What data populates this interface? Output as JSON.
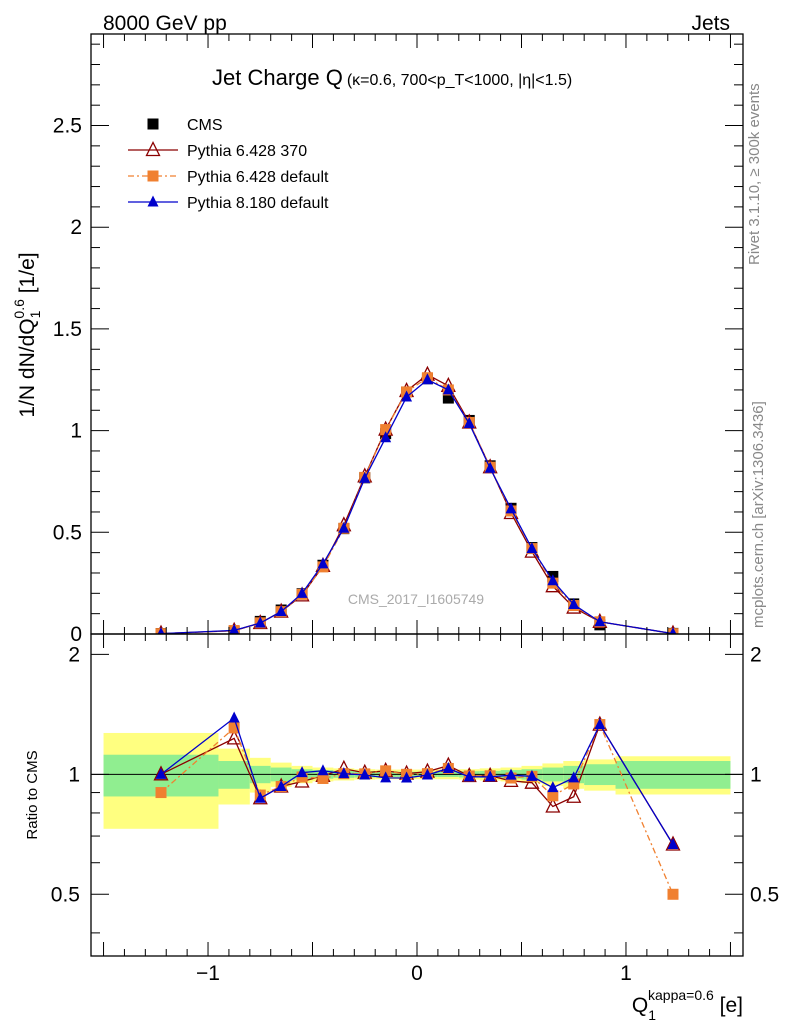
{
  "header": {
    "left": "8000 GeV pp",
    "right": "Jets"
  },
  "side_labels": {
    "rivet": "Rivet 3.1.10, ≥ 300k events",
    "mcplots": "mcplots.cern.ch [arXiv:1306.3436]"
  },
  "analysis_tag": "CMS_2017_I1605749",
  "chart_data": {
    "type": "line",
    "title": "Jet Charge Q",
    "title_sub": "(κ=0.6, 700<p_T<1000, |η|<1.5)",
    "xlabel": "Q_1^{kappa=0.6} [e]",
    "ylabel": "1/N dN/dQ_1^{0.6} [1/e]",
    "ratio_ylabel": "Ratio to CMS",
    "xlim": [
      -1.56,
      1.56
    ],
    "ylim": [
      0,
      2.95
    ],
    "ratio_ylim": [
      0.35,
      2.25
    ],
    "x_ticks": [
      "−1",
      "0",
      "1"
    ],
    "y_ticks": [
      "0",
      "0.5",
      "1",
      "1.5",
      "2",
      "2.5"
    ],
    "ratio_ticks": [
      "0.5",
      "1",
      "2"
    ],
    "legend_position": "top-left",
    "x": [
      -1.225,
      -0.875,
      -0.75,
      -0.65,
      -0.55,
      -0.45,
      -0.35,
      -0.25,
      -0.15,
      -0.05,
      0.05,
      0.15,
      0.25,
      0.35,
      0.45,
      0.55,
      0.65,
      0.75,
      0.875,
      1.225
    ],
    "band_edges": [
      -1.5,
      -0.95,
      -0.8,
      -0.7,
      -0.6,
      -0.5,
      -0.4,
      -0.3,
      -0.2,
      -0.1,
      0.0,
      0.1,
      0.2,
      0.3,
      0.4,
      0.5,
      0.6,
      0.7,
      0.8,
      0.95,
      1.5
    ],
    "band_stat": [
      0.12,
      0.08,
      0.05,
      0.04,
      0.03,
      0.025,
      0.02,
      0.018,
      0.015,
      0.015,
      0.015,
      0.015,
      0.018,
      0.02,
      0.025,
      0.03,
      0.04,
      0.05,
      0.06,
      0.08
    ],
    "band_total": [
      0.27,
      0.16,
      0.1,
      0.07,
      0.05,
      0.04,
      0.035,
      0.03,
      0.028,
      0.028,
      0.028,
      0.028,
      0.03,
      0.035,
      0.04,
      0.05,
      0.065,
      0.08,
      0.09,
      0.11
    ],
    "series": [
      {
        "name": "CMS",
        "color": "#000000",
        "marker": "square",
        "values": [
          0.002,
          0.013,
          0.062,
          0.118,
          0.198,
          0.338,
          0.518,
          0.768,
          0.985,
          1.19,
          1.255,
          1.16,
          1.05,
          0.827,
          0.618,
          0.425,
          0.283,
          0.148,
          0.045,
          0.003
        ]
      },
      {
        "name": "Pythia 6.428 370",
        "color": "#8b0000",
        "marker": "open-triangle",
        "dash": "",
        "values": [
          0.002,
          0.016,
          0.054,
          0.11,
          0.19,
          0.335,
          0.535,
          0.775,
          1.005,
          1.195,
          1.275,
          1.22,
          1.04,
          0.82,
          0.595,
          0.405,
          0.235,
          0.13,
          0.06,
          0.002
        ]
      },
      {
        "name": "Pythia 6.428 default",
        "color": "#f08030",
        "marker": "square",
        "dash": "6,3,2,3",
        "values": [
          0.0018,
          0.017,
          0.055,
          0.11,
          0.195,
          0.33,
          0.52,
          0.77,
          1.005,
          1.19,
          1.26,
          1.2,
          1.04,
          0.82,
          0.605,
          0.42,
          0.25,
          0.14,
          0.06,
          0.0015
        ]
      },
      {
        "name": "Pythia 8.180 default",
        "color": "#0000cc",
        "marker": "triangle",
        "dash": "",
        "values": [
          0.002,
          0.018,
          0.054,
          0.11,
          0.2,
          0.345,
          0.52,
          0.765,
          0.965,
          1.165,
          1.25,
          1.2,
          1.035,
          0.815,
          0.615,
          0.42,
          0.262,
          0.145,
          0.06,
          0.002
        ]
      }
    ]
  }
}
